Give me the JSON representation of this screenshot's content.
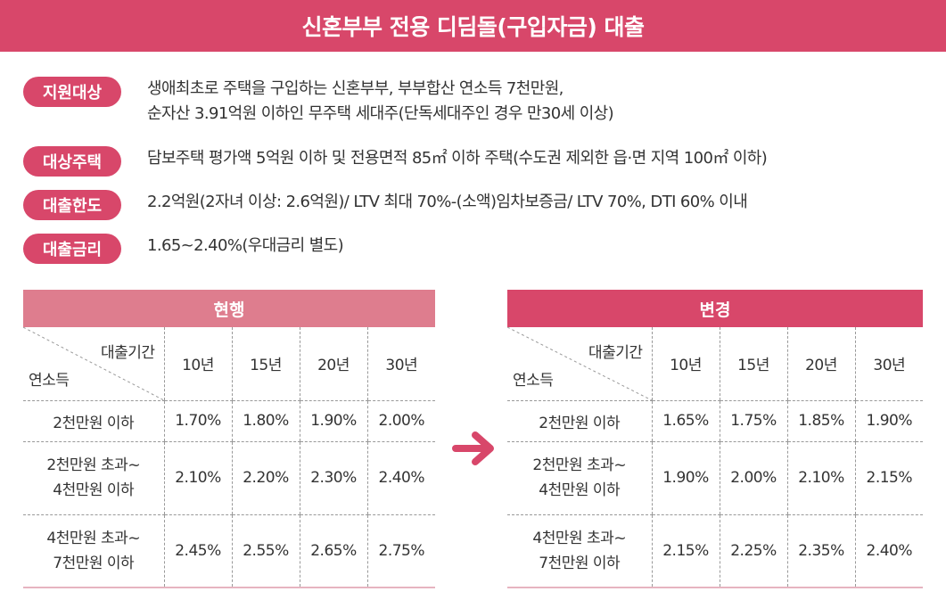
{
  "title": "신혼부부 전용 디딤돌(구입자금) 대출",
  "info": [
    {
      "label": "지원대상",
      "lines": [
        "생애최초로 주택을 구입하는 신혼부부, 부부합산 연소득 7천만원,",
        "순자산 3.91억원 이하인 무주택 세대주(단독세대주인 경우 만30세 이상)"
      ]
    },
    {
      "label": "대상주택",
      "lines": [
        "담보주택 평가액 5억원 이하 및 전용면적 85㎡ 이하 주택(수도권 제외한 읍·면 지역 100㎡ 이하)"
      ]
    },
    {
      "label": "대출한도",
      "lines": [
        "2.2억원(2자녀 이상: 2.6억원)/ LTV 최대 70%-(소액)임차보증금/ LTV 70%, DTI 60% 이내"
      ]
    },
    {
      "label": "대출금리",
      "lines": [
        "1.65~2.40%(우대금리 별도)"
      ]
    }
  ],
  "tables": {
    "col_top_label": "대출기간",
    "row_label": "연소득",
    "periods": [
      "10년",
      "15년",
      "20년",
      "30년"
    ],
    "income_rows": [
      [
        "2천만원 이하"
      ],
      [
        "2천만원 초과~",
        "4천만원 이하"
      ],
      [
        "4천만원 초과~",
        "7천만원 이하"
      ]
    ],
    "current": {
      "title": "현행",
      "rates": [
        [
          "1.70%",
          "1.80%",
          "1.90%",
          "2.00%"
        ],
        [
          "2.10%",
          "2.20%",
          "2.30%",
          "2.40%"
        ],
        [
          "2.45%",
          "2.55%",
          "2.65%",
          "2.75%"
        ]
      ]
    },
    "changed": {
      "title": "변경",
      "rates": [
        [
          "1.65%",
          "1.75%",
          "1.85%",
          "1.90%"
        ],
        [
          "1.90%",
          "2.00%",
          "2.10%",
          "2.15%"
        ],
        [
          "2.15%",
          "2.25%",
          "2.35%",
          "2.40%"
        ]
      ]
    }
  },
  "colors": {
    "accent": "#d8476a",
    "accent_light": "#de7d8e"
  },
  "icons": {
    "arrow": "arrow-right-icon"
  }
}
